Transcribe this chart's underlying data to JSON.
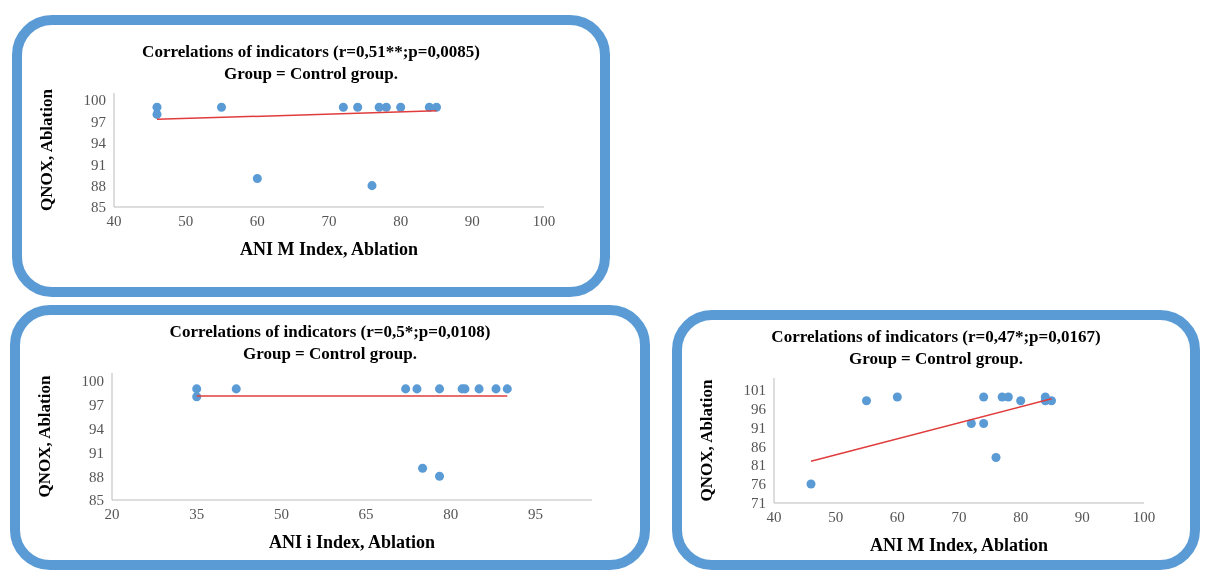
{
  "chart_data": [
    {
      "type": "scatter",
      "title": "Correlations of indicators (r=0,51**;p=0,0085)",
      "subtitle": "Group = Control group.",
      "xlabel": "ANI M Index, Ablation",
      "ylabel": "QNOX, Ablation",
      "xlim": [
        40,
        100
      ],
      "xticks": [
        40,
        50,
        60,
        70,
        80,
        90,
        100
      ],
      "ylim": [
        85,
        101
      ],
      "yticks": [
        85,
        88,
        91,
        94,
        97,
        100
      ],
      "grid": false,
      "legend": false,
      "series": [
        {
          "marker": "circle",
          "color": "#5b9bd5",
          "x": [
            46,
            46,
            55,
            60,
            72,
            74,
            76,
            77,
            78,
            80,
            84,
            85
          ],
          "values": [
            99,
            98,
            99,
            89,
            99,
            99,
            88,
            99,
            99,
            99,
            99,
            99
          ]
        },
        {
          "type": "line",
          "color": "#e03c3c",
          "x": [
            46,
            85
          ],
          "values": [
            97.3,
            98.5
          ]
        }
      ]
    },
    {
      "type": "scatter",
      "title": "Correlations of indicators (r=0,5*;p=0,0108)",
      "subtitle": "Group = Control group.",
      "xlabel": "ANI i Index, Ablation",
      "ylabel": "QNOX, Ablation",
      "xlim": [
        20,
        105
      ],
      "xticks": [
        20,
        35,
        50,
        65,
        80,
        95
      ],
      "ylim": [
        85,
        101
      ],
      "yticks": [
        85,
        88,
        91,
        94,
        97,
        100
      ],
      "grid": false,
      "legend": false,
      "series": [
        {
          "marker": "circle",
          "color": "#5b9bd5",
          "x": [
            35,
            35,
            42,
            72,
            74,
            75,
            78,
            78,
            82,
            82.5,
            85,
            88,
            90
          ],
          "values": [
            99,
            98,
            99,
            99,
            99,
            89,
            99,
            88,
            99,
            99,
            99,
            99,
            99
          ]
        },
        {
          "type": "line",
          "color": "#e03c3c",
          "x": [
            35,
            90
          ],
          "values": [
            98.1,
            98.1
          ]
        }
      ]
    },
    {
      "type": "scatter",
      "title": "Correlations of indicators (r=0,47*;p=0,0167)",
      "subtitle": "Group = Control group.",
      "xlabel": "ANI M Index, Ablation",
      "ylabel": "QNOX, Ablation",
      "xlim": [
        40,
        100
      ],
      "xticks": [
        40,
        50,
        60,
        70,
        80,
        90,
        100
      ],
      "ylim": [
        71,
        104
      ],
      "yticks": [
        71,
        76,
        81,
        86,
        91,
        96,
        101
      ],
      "grid": false,
      "legend": false,
      "series": [
        {
          "marker": "circle",
          "color": "#5b9bd5",
          "x": [
            46,
            55,
            60,
            72,
            74,
            74,
            76,
            77,
            78,
            80,
            84,
            84,
            85
          ],
          "values": [
            76,
            98,
            99,
            92,
            99,
            92,
            83,
            99,
            99,
            98,
            99,
            98,
            98
          ]
        },
        {
          "type": "line",
          "color": "#e03c3c",
          "x": [
            46,
            85
          ],
          "values": [
            82,
            98.5
          ]
        }
      ]
    }
  ]
}
